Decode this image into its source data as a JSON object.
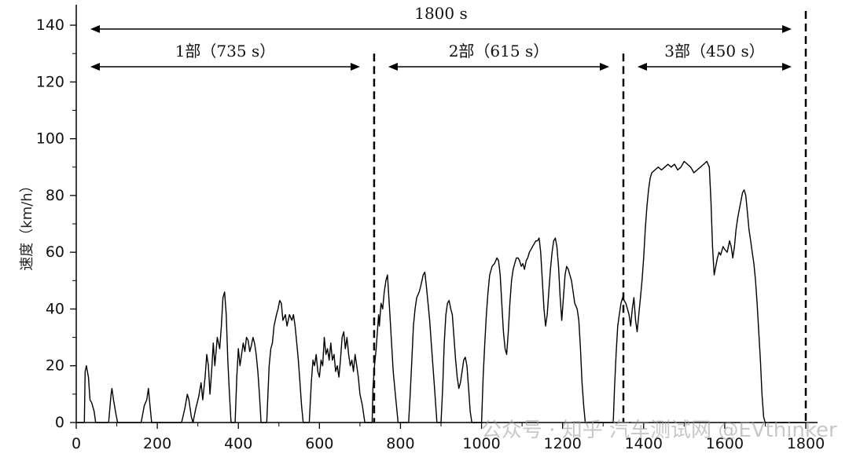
{
  "chart_data": {
    "type": "line",
    "xlim": [
      0,
      1800
    ],
    "ylim": [
      0,
      145
    ],
    "xticks": [
      0,
      200,
      400,
      600,
      800,
      1000,
      1200,
      1400,
      1600,
      1800
    ],
    "yticks": [
      0,
      20,
      40,
      60,
      80,
      100,
      120,
      140
    ],
    "ylabel": "速度（km/h）",
    "grid": false,
    "series": [
      {
        "values": [
          [
            0,
            0
          ],
          [
            20,
            0
          ],
          [
            22,
            18
          ],
          [
            25,
            20
          ],
          [
            30,
            16
          ],
          [
            34,
            8
          ],
          [
            38,
            7
          ],
          [
            44,
            4
          ],
          [
            48,
            0
          ],
          [
            80,
            0
          ],
          [
            86,
            10
          ],
          [
            88,
            12
          ],
          [
            92,
            8
          ],
          [
            98,
            3
          ],
          [
            102,
            0
          ],
          [
            160,
            0
          ],
          [
            168,
            6
          ],
          [
            174,
            8
          ],
          [
            178,
            12
          ],
          [
            182,
            6
          ],
          [
            186,
            0
          ],
          [
            260,
            0
          ],
          [
            268,
            5
          ],
          [
            274,
            10
          ],
          [
            278,
            8
          ],
          [
            284,
            2
          ],
          [
            288,
            0
          ],
          [
            295,
            5
          ],
          [
            302,
            9
          ],
          [
            308,
            14
          ],
          [
            312,
            8
          ],
          [
            318,
            16
          ],
          [
            322,
            24
          ],
          [
            326,
            20
          ],
          [
            330,
            10
          ],
          [
            334,
            18
          ],
          [
            338,
            28
          ],
          [
            342,
            20
          ],
          [
            348,
            30
          ],
          [
            354,
            26
          ],
          [
            358,
            34
          ],
          [
            362,
            44
          ],
          [
            366,
            46
          ],
          [
            370,
            38
          ],
          [
            374,
            22
          ],
          [
            378,
            10
          ],
          [
            382,
            0
          ],
          [
            392,
            0
          ],
          [
            396,
            16
          ],
          [
            400,
            26
          ],
          [
            404,
            20
          ],
          [
            408,
            24
          ],
          [
            412,
            28
          ],
          [
            416,
            25
          ],
          [
            420,
            30
          ],
          [
            424,
            29
          ],
          [
            428,
            25
          ],
          [
            432,
            27
          ],
          [
            436,
            30
          ],
          [
            440,
            28
          ],
          [
            444,
            24
          ],
          [
            448,
            18
          ],
          [
            452,
            10
          ],
          [
            456,
            0
          ],
          [
            470,
            0
          ],
          [
            476,
            20
          ],
          [
            480,
            26
          ],
          [
            484,
            28
          ],
          [
            488,
            34
          ],
          [
            494,
            38
          ],
          [
            498,
            40
          ],
          [
            502,
            43
          ],
          [
            506,
            42
          ],
          [
            510,
            36
          ],
          [
            516,
            38
          ],
          [
            520,
            34
          ],
          [
            526,
            38
          ],
          [
            532,
            36
          ],
          [
            536,
            38
          ],
          [
            540,
            34
          ],
          [
            544,
            28
          ],
          [
            548,
            22
          ],
          [
            552,
            14
          ],
          [
            556,
            6
          ],
          [
            560,
            0
          ],
          [
            575,
            0
          ],
          [
            580,
            14
          ],
          [
            584,
            22
          ],
          [
            588,
            20
          ],
          [
            592,
            24
          ],
          [
            596,
            18
          ],
          [
            600,
            16
          ],
          [
            604,
            22
          ],
          [
            608,
            20
          ],
          [
            612,
            30
          ],
          [
            616,
            24
          ],
          [
            620,
            26
          ],
          [
            624,
            22
          ],
          [
            628,
            28
          ],
          [
            632,
            22
          ],
          [
            636,
            24
          ],
          [
            640,
            18
          ],
          [
            644,
            20
          ],
          [
            648,
            16
          ],
          [
            652,
            22
          ],
          [
            656,
            30
          ],
          [
            660,
            32
          ],
          [
            664,
            26
          ],
          [
            668,
            30
          ],
          [
            672,
            24
          ],
          [
            676,
            20
          ],
          [
            680,
            22
          ],
          [
            684,
            18
          ],
          [
            688,
            24
          ],
          [
            692,
            20
          ],
          [
            696,
            16
          ],
          [
            700,
            10
          ],
          [
            706,
            6
          ],
          [
            712,
            0
          ],
          [
            730,
            0
          ],
          [
            732,
            12
          ],
          [
            736,
            20
          ],
          [
            740,
            26
          ],
          [
            744,
            34
          ],
          [
            746,
            38
          ],
          [
            748,
            34
          ],
          [
            752,
            42
          ],
          [
            756,
            40
          ],
          [
            760,
            46
          ],
          [
            764,
            50
          ],
          [
            768,
            52
          ],
          [
            770,
            47
          ],
          [
            774,
            38
          ],
          [
            778,
            28
          ],
          [
            782,
            18
          ],
          [
            786,
            12
          ],
          [
            790,
            6
          ],
          [
            794,
            0
          ],
          [
            820,
            0
          ],
          [
            824,
            10
          ],
          [
            828,
            22
          ],
          [
            832,
            34
          ],
          [
            836,
            40
          ],
          [
            840,
            44
          ],
          [
            846,
            46
          ],
          [
            850,
            48
          ],
          [
            856,
            52
          ],
          [
            860,
            53
          ],
          [
            864,
            48
          ],
          [
            868,
            42
          ],
          [
            872,
            36
          ],
          [
            876,
            28
          ],
          [
            880,
            20
          ],
          [
            884,
            12
          ],
          [
            888,
            4
          ],
          [
            890,
            0
          ],
          [
            900,
            0
          ],
          [
            904,
            12
          ],
          [
            908,
            28
          ],
          [
            912,
            38
          ],
          [
            916,
            42
          ],
          [
            920,
            43
          ],
          [
            924,
            40
          ],
          [
            928,
            38
          ],
          [
            932,
            30
          ],
          [
            936,
            22
          ],
          [
            940,
            16
          ],
          [
            944,
            12
          ],
          [
            948,
            14
          ],
          [
            952,
            18
          ],
          [
            956,
            22
          ],
          [
            960,
            23
          ],
          [
            964,
            20
          ],
          [
            968,
            12
          ],
          [
            972,
            4
          ],
          [
            976,
            0
          ],
          [
            1000,
            0
          ],
          [
            1004,
            16
          ],
          [
            1008,
            28
          ],
          [
            1012,
            38
          ],
          [
            1016,
            46
          ],
          [
            1020,
            52
          ],
          [
            1026,
            55
          ],
          [
            1032,
            56
          ],
          [
            1038,
            58
          ],
          [
            1042,
            57
          ],
          [
            1046,
            52
          ],
          [
            1050,
            42
          ],
          [
            1054,
            32
          ],
          [
            1058,
            26
          ],
          [
            1062,
            24
          ],
          [
            1066,
            32
          ],
          [
            1070,
            42
          ],
          [
            1074,
            50
          ],
          [
            1078,
            54
          ],
          [
            1082,
            56
          ],
          [
            1086,
            58
          ],
          [
            1090,
            58
          ],
          [
            1094,
            57
          ],
          [
            1098,
            55
          ],
          [
            1102,
            56
          ],
          [
            1106,
            54
          ],
          [
            1110,
            57
          ],
          [
            1114,
            58
          ],
          [
            1118,
            60
          ],
          [
            1122,
            61
          ],
          [
            1126,
            62
          ],
          [
            1130,
            63
          ],
          [
            1134,
            64
          ],
          [
            1138,
            64
          ],
          [
            1142,
            65
          ],
          [
            1146,
            60
          ],
          [
            1150,
            50
          ],
          [
            1154,
            40
          ],
          [
            1158,
            34
          ],
          [
            1162,
            38
          ],
          [
            1166,
            46
          ],
          [
            1170,
            54
          ],
          [
            1174,
            60
          ],
          [
            1178,
            64
          ],
          [
            1182,
            65
          ],
          [
            1186,
            62
          ],
          [
            1190,
            55
          ],
          [
            1194,
            44
          ],
          [
            1198,
            36
          ],
          [
            1202,
            44
          ],
          [
            1206,
            52
          ],
          [
            1210,
            55
          ],
          [
            1214,
            54
          ],
          [
            1218,
            52
          ],
          [
            1222,
            50
          ],
          [
            1226,
            46
          ],
          [
            1230,
            42
          ],
          [
            1236,
            40
          ],
          [
            1240,
            36
          ],
          [
            1244,
            26
          ],
          [
            1248,
            14
          ],
          [
            1252,
            6
          ],
          [
            1256,
            0
          ],
          [
            1325,
            0
          ],
          [
            1328,
            12
          ],
          [
            1332,
            24
          ],
          [
            1336,
            34
          ],
          [
            1340,
            38
          ],
          [
            1344,
            42
          ],
          [
            1348,
            44
          ],
          [
            1352,
            43
          ],
          [
            1356,
            42
          ],
          [
            1360,
            40
          ],
          [
            1364,
            38
          ],
          [
            1368,
            34
          ],
          [
            1372,
            40
          ],
          [
            1376,
            44
          ],
          [
            1380,
            36
          ],
          [
            1384,
            32
          ],
          [
            1388,
            38
          ],
          [
            1392,
            44
          ],
          [
            1396,
            50
          ],
          [
            1400,
            58
          ],
          [
            1404,
            68
          ],
          [
            1408,
            76
          ],
          [
            1412,
            82
          ],
          [
            1416,
            86
          ],
          [
            1420,
            88
          ],
          [
            1428,
            89
          ],
          [
            1436,
            90
          ],
          [
            1444,
            89
          ],
          [
            1452,
            90
          ],
          [
            1460,
            91
          ],
          [
            1468,
            90
          ],
          [
            1476,
            91
          ],
          [
            1484,
            89
          ],
          [
            1492,
            90
          ],
          [
            1500,
            92
          ],
          [
            1508,
            91
          ],
          [
            1516,
            90
          ],
          [
            1524,
            88
          ],
          [
            1532,
            89
          ],
          [
            1540,
            90
          ],
          [
            1548,
            91
          ],
          [
            1556,
            92
          ],
          [
            1562,
            90
          ],
          [
            1566,
            78
          ],
          [
            1570,
            62
          ],
          [
            1574,
            52
          ],
          [
            1578,
            55
          ],
          [
            1582,
            58
          ],
          [
            1586,
            60
          ],
          [
            1590,
            59
          ],
          [
            1596,
            62
          ],
          [
            1600,
            61
          ],
          [
            1606,
            60
          ],
          [
            1612,
            64
          ],
          [
            1616,
            62
          ],
          [
            1620,
            58
          ],
          [
            1624,
            62
          ],
          [
            1628,
            68
          ],
          [
            1632,
            72
          ],
          [
            1636,
            75
          ],
          [
            1640,
            78
          ],
          [
            1644,
            81
          ],
          [
            1648,
            82
          ],
          [
            1652,
            80
          ],
          [
            1656,
            74
          ],
          [
            1660,
            68
          ],
          [
            1664,
            64
          ],
          [
            1668,
            60
          ],
          [
            1672,
            56
          ],
          [
            1676,
            50
          ],
          [
            1680,
            42
          ],
          [
            1684,
            32
          ],
          [
            1688,
            22
          ],
          [
            1692,
            10
          ],
          [
            1696,
            2
          ],
          [
            1700,
            0
          ],
          [
            1800,
            0
          ]
        ]
      }
    ],
    "annotations": [
      {
        "text": "1800 s",
        "x_from": 0,
        "x_to": 1800,
        "y": 138
      },
      {
        "text": "1部（735 s）",
        "x_from": 0,
        "x_to": 735,
        "y": 125
      },
      {
        "text": "2部（615 s）",
        "x_from": 735,
        "x_to": 1350,
        "y": 125
      },
      {
        "text": "3部（450 s）",
        "x_from": 1350,
        "x_to": 1800,
        "y": 125
      }
    ],
    "boundaries": [
      735,
      1350,
      1800
    ],
    "watermark": "公众号 · 知乎 汽车测试网 @EVthinker"
  }
}
